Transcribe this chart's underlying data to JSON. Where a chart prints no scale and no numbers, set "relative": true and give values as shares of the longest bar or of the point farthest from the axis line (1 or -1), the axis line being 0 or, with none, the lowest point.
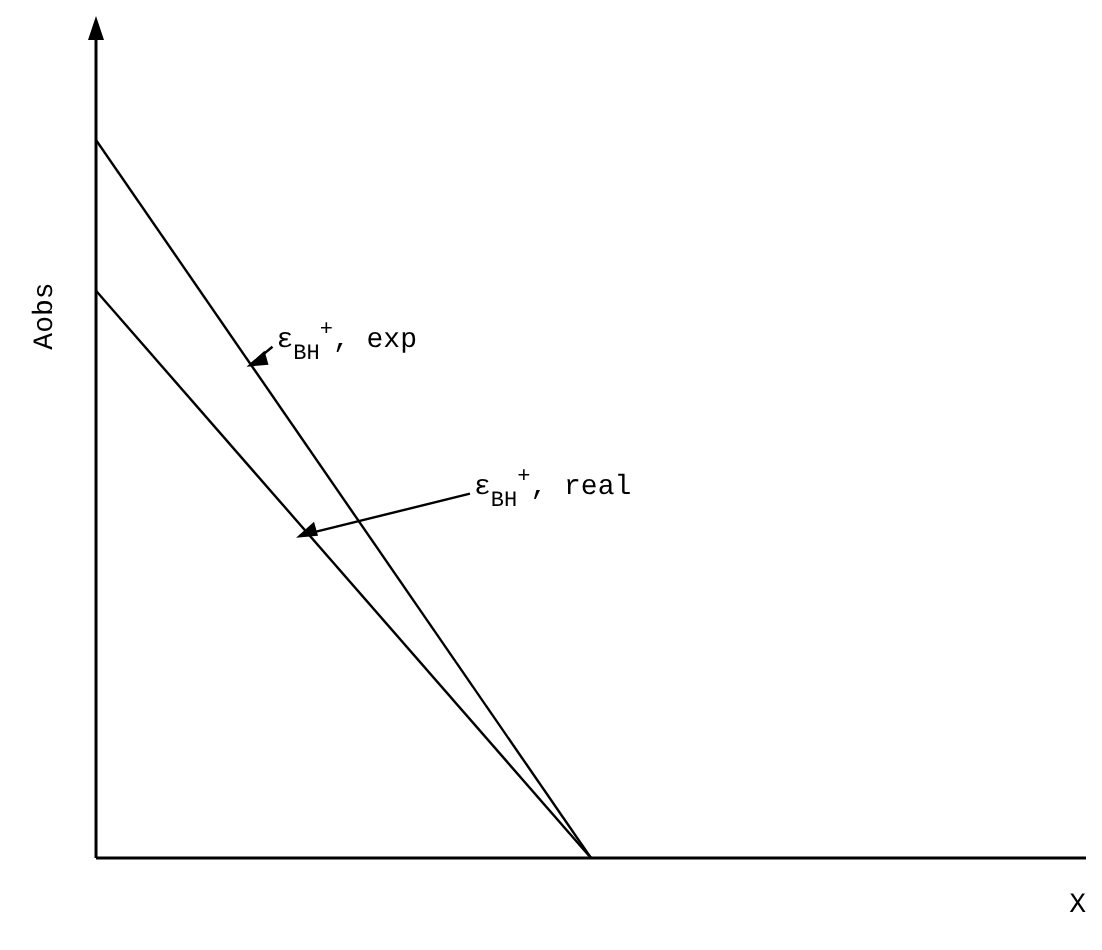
{
  "chart_data": {
    "type": "line",
    "relative": true,
    "xlabel": "X",
    "ylabel": "Aobs",
    "categories": [
      null,
      null,
      null
    ],
    "series": [
      {
        "color": "#000000",
        "values": [
          1,
          0,
          null
        ]
      },
      {
        "color": "#000000",
        "values": [
          0.79,
          0,
          null
        ]
      }
    ],
    "annotations": [
      "ε$_{BH}$$^{+}$, exp",
      "ε$_{BH}$$^{+}$, real"
    ],
    "grid": false,
    "legend": false,
    "marker": "none",
    "line_style": "solid"
  }
}
